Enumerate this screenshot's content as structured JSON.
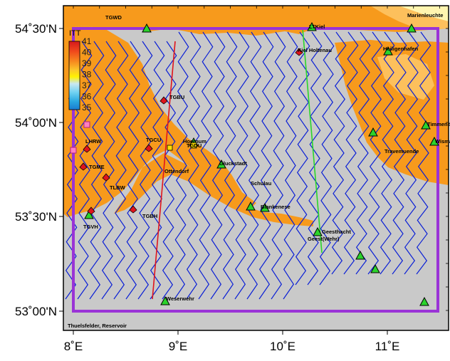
{
  "map": {
    "axes": {
      "lon_ticks": [
        "8˚E",
        "9˚E",
        "10˚E",
        "11˚E"
      ],
      "lat_ticks": [
        "54˚30'N",
        "54˚00'N",
        "53˚30'N",
        "53˚00'N"
      ]
    },
    "colorbar": {
      "unit_label": "ITT",
      "labels": [
        "41",
        "40",
        "39",
        "38",
        "37",
        "36",
        "35"
      ],
      "colors": [
        "#d7191c",
        "#f04a1c",
        "#f78b1f",
        "#fbc62b",
        "#fff200",
        "#c9e7f0",
        "#6fd1f1",
        "#2aa7e0",
        "#1a7bd0"
      ]
    },
    "colors": {
      "ocean": "#c9c9c9",
      "land_dark": "#f79a1c",
      "land_light": "#fdc05c",
      "boundary": "#9a33d6",
      "tracks": "#0a1fd6",
      "track_red": "#e0141c",
      "track_green": "#29d62b"
    },
    "place_labels": [
      "TGWD",
      "Marienleuchte",
      "LTKiel",
      "Kiel Holtenau",
      "Heiligenhafen",
      "TGBU",
      "Timmendorf",
      "Wismar",
      "LHRW",
      "TGCU",
      "Hoernum",
      "TGDU",
      "Travemuende",
      "TGME",
      "Gluckstadt",
      "Ottendorf",
      "TLBW",
      "Schulau",
      "Blankenese",
      "TGBH",
      "TGVH",
      "Geesthacht",
      "Geest(Wehr)",
      "Weserwehr",
      "Thuelsfelder, Reservoir"
    ]
  }
}
